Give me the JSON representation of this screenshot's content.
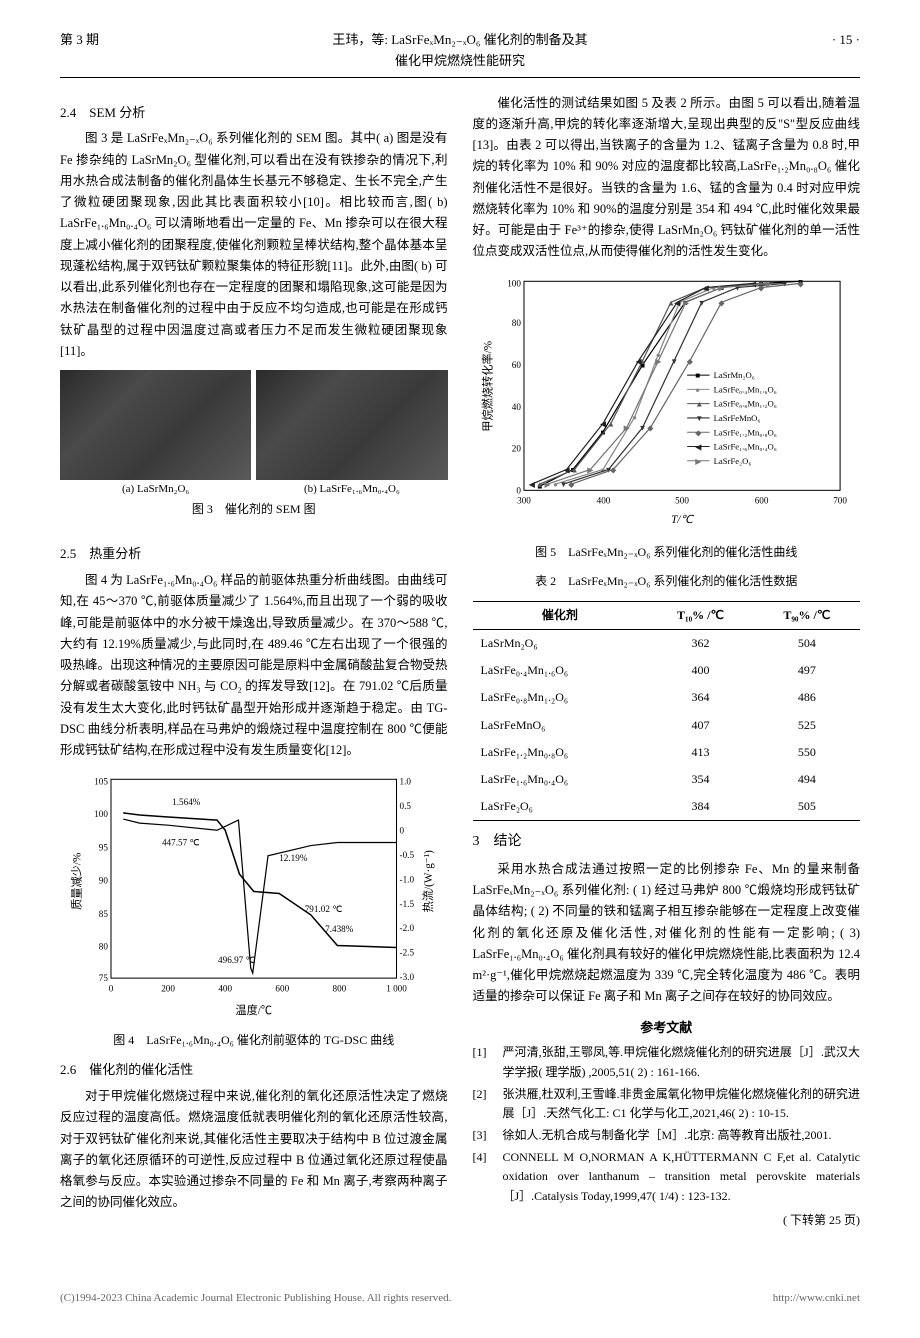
{
  "header": {
    "left": "第 3 期",
    "center": "王玮，等: LaSrFeₓMn₂₋ₓO₆ 催化剂的制备及其催化甲烷燃烧性能研究",
    "right": "· 15 ·"
  },
  "sec24": {
    "title": "2.4　SEM 分析",
    "p1": "图 3 是 LaSrFeₓMn₂₋ₓO₆ 系列催化剂的 SEM 图。其中( a) 图是没有 Fe 掺杂纯的 LaSrMn₂O₆ 型催化剂,可以看出在没有铁掺杂的情况下,利用水热合成法制备的催化剂晶体生长基元不够稳定、生长不完全,产生了微粒硬团聚现象,因此其比表面积较小[10]。相比较而言,图( b) LaSrFe₁.₆Mn₀.₄O₆ 可以清晰地看出一定量的 Fe、Mn 掺杂可以在很大程度上减小催化剂的团聚程度,使催化剂颗粒呈棒状结构,整个晶体基本呈现蓬松结构,属于双钙钛矿颗粒聚集体的特征形貌[11]。此外,由图( b) 可以看出,此系列催化剂也存在一定程度的团聚和塌陷现象,这可能是因为水热法在制备催化剂的过程中由于反应不均匀造成,也可能是在形成钙钛矿晶型的过程中因温度过高或者压力不足而发生微粒硬团聚现象[11]。"
  },
  "fig3": {
    "label_a": "(a) LaSrMn₂O₆",
    "label_b": "(b) LaSrFe₁.₆Mn₀.₄O₆",
    "caption": "图 3　催化剂的 SEM 图"
  },
  "sec25": {
    "title": "2.5　热重分析",
    "p1": "图 4 为 LaSrFe₁.₆Mn₀.₄O₆ 样品的前驱体热重分析曲线图。由曲线可知,在 45～370 ℃,前驱体质量减少了 1.564%,而且出现了一个弱的吸收峰,可能是前驱体中的水分被干燥逸出,导致质量减少。在 370～588 ℃,大约有 12.19%质量减少,与此同时,在 489.46 ℃左右出现了一个很强的吸热峰。出现这种情况的主要原因可能是原料中金属硝酸盐复合物受热分解或者碳酸氢铵中 NH₃ 与 CO₂ 的挥发导致[12]。在 791.02 ℃后质量没有发生太大变化,此时钙钛矿晶型开始形成并逐渐趋于稳定。由 TG-DSC 曲线分析表明,样品在马弗炉的煅烧过程中温度控制在 800 ℃便能形成钙钛矿结构,在形成过程中没有发生质量变化[12]。"
  },
  "fig4": {
    "caption": "图 4　LaSrFe₁.₆Mn₀.₄O₆ 催化剂前驱体的 TG-DSC 曲线",
    "chart": {
      "type": "line-dual-axis",
      "xlabel": "温度/℃",
      "ylabel_left": "质量减少/%",
      "ylabel_right": "热流/(W·g⁻¹)",
      "xlim": [
        0,
        1000
      ],
      "xticks": [
        0,
        200,
        400,
        600,
        800,
        1000
      ],
      "ylim_left": [
        75,
        105
      ],
      "yticks_left": [
        75,
        80,
        85,
        90,
        95,
        100,
        105
      ],
      "ylim_right": [
        -3.0,
        1.0
      ],
      "yticks_right": [
        -3.0,
        -2.5,
        -2.0,
        -1.5,
        -1.0,
        -0.5,
        0,
        0.5,
        1.0
      ],
      "tg_color": "#000000",
      "dsc_color": "#000000",
      "annotations": [
        "1.564%",
        "447.57 ℃",
        "12.19%",
        "791.02 ℃",
        "496.97 ℃",
        "7.438%"
      ],
      "background": "#ffffff",
      "grid": false,
      "tg_data": [
        [
          45,
          100.5
        ],
        [
          100,
          100
        ],
        [
          200,
          99.5
        ],
        [
          370,
          99
        ],
        [
          400,
          97
        ],
        [
          450,
          90
        ],
        [
          500,
          87
        ],
        [
          588,
          86.8
        ],
        [
          700,
          85
        ],
        [
          791,
          80
        ],
        [
          900,
          79.8
        ],
        [
          1000,
          79.7
        ]
      ],
      "dsc_data": [
        [
          45,
          0.3
        ],
        [
          100,
          0.2
        ],
        [
          200,
          0.1
        ],
        [
          370,
          0
        ],
        [
          447,
          0.2
        ],
        [
          489,
          -2.8
        ],
        [
          497,
          -2.9
        ],
        [
          550,
          -0.5
        ],
        [
          700,
          -0.3
        ],
        [
          791,
          -0.2
        ],
        [
          900,
          -0.2
        ],
        [
          1000,
          -0.2
        ]
      ]
    }
  },
  "sec26": {
    "title": "2.6　催化剂的催化活性",
    "p1": "对于甲烷催化燃烧过程中来说,催化剂的氧化还原活性决定了燃烧反应过程的温度高低。燃烧温度低就表明催化剂的氧化还原活性较高,对于双钙钛矿催化剂来说,其催化活性主要取决于结构中 B 位过渡金属离子的氧化还原循环的可逆性,反应过程中 B 位通过氧化还原过程使晶格氧参与反应。本实验通过掺杂不同量的 Fe 和 Mn 离子,考察两种离子之间的协同催化效应。"
  },
  "right": {
    "p1": "催化活性的测试结果如图 5 及表 2 所示。由图 5 可以看出,随着温度的逐渐升高,甲烷的转化率逐渐增大,呈现出典型的反\"S\"型反应曲线[13]。由表 2 可以得出,当铁离子的含量为 1.2、锰离子含量为 0.8 时,甲烷的转化率为 10% 和 90% 对应的温度都比较高,LaSrFe₁.₂Mn₀.₈O₆ 催化剂催化活性不是很好。当铁的含量为 1.6、锰的含量为 0.4 时对应甲烷燃烧转化率为 10% 和 90%的温度分别是 354 和 494 ℃,此时催化效果最好。可能是由于 Fe³⁺的掺杂,使得 LaSrMn₂O₆ 钙钛矿催化剂的单一活性位点变成双活性位点,从而使得催化剂的活性发生变化。"
  },
  "fig5": {
    "caption": "图 5　LaSrFeₓMn₂₋ₓO₆ 系列催化剂的催化活性曲线",
    "chart": {
      "type": "line",
      "xlabel": "T/℃",
      "ylabel": "甲烷燃烧转化率/%",
      "xlim": [
        300,
        700
      ],
      "xticks": [
        300,
        400,
        500,
        600,
        700
      ],
      "ylim": [
        0,
        100
      ],
      "yticks": [
        0,
        20,
        40,
        60,
        80,
        100
      ],
      "background": "#ffffff",
      "grid": false,
      "frame_color": "#000000",
      "series": [
        {
          "name": "LaSrMn₂O₆",
          "color": "#000000",
          "marker": "square",
          "data": [
            [
              320,
              2
            ],
            [
              362,
              10
            ],
            [
              400,
              28
            ],
            [
              450,
              60
            ],
            [
              504,
              90
            ],
            [
              550,
              97
            ],
            [
              600,
              99
            ],
            [
              650,
              100
            ]
          ]
        },
        {
          "name": "LaSrFe₀.₄Mn₁.₆O₆",
          "color": "#888888",
          "marker": "circle",
          "data": [
            [
              340,
              3
            ],
            [
              400,
              10
            ],
            [
              440,
              35
            ],
            [
              470,
              65
            ],
            [
              497,
              90
            ],
            [
              540,
              97
            ],
            [
              600,
              99
            ]
          ]
        },
        {
          "name": "LaSrFe₀.₈Mn₁.₂O₆",
          "color": "#555555",
          "marker": "triangle-up",
          "data": [
            [
              320,
              3
            ],
            [
              364,
              10
            ],
            [
              410,
              32
            ],
            [
              450,
              62
            ],
            [
              486,
              90
            ],
            [
              530,
              97
            ],
            [
              600,
              99
            ]
          ]
        },
        {
          "name": "LaSrFeMnO₆",
          "color": "#333333",
          "marker": "triangle-down",
          "data": [
            [
              350,
              3
            ],
            [
              407,
              10
            ],
            [
              450,
              30
            ],
            [
              490,
              62
            ],
            [
              525,
              90
            ],
            [
              570,
              97
            ],
            [
              630,
              99
            ]
          ]
        },
        {
          "name": "LaSrFe₁.₂Mn₀.₈O₆",
          "color": "#666666",
          "marker": "diamond",
          "data": [
            [
              360,
              3
            ],
            [
              413,
              10
            ],
            [
              460,
              30
            ],
            [
              510,
              62
            ],
            [
              550,
              90
            ],
            [
              600,
              97
            ],
            [
              650,
              99
            ]
          ]
        },
        {
          "name": "LaSrFe₁.₆Mn₀.₄O₆",
          "color": "#222222",
          "marker": "triangle-left",
          "data": [
            [
              310,
              3
            ],
            [
              354,
              10
            ],
            [
              400,
              32
            ],
            [
              445,
              62
            ],
            [
              494,
              90
            ],
            [
              530,
              97
            ],
            [
              590,
              99
            ]
          ]
        },
        {
          "name": "LaSrFe₂O₆",
          "color": "#777777",
          "marker": "triangle-right",
          "data": [
            [
              330,
              3
            ],
            [
              384,
              10
            ],
            [
              430,
              30
            ],
            [
              470,
              62
            ],
            [
              505,
              90
            ],
            [
              550,
              97
            ],
            [
              610,
              99
            ]
          ]
        }
      ]
    }
  },
  "table2": {
    "caption": "表 2　LaSrFeₓMn₂₋ₓO₆ 系列催化剂的催化活性数据",
    "columns": [
      "催化剂",
      "T₁₀% /℃",
      "T₉₀% /℃"
    ],
    "rows": [
      [
        "LaSrMn₂O₆",
        "362",
        "504"
      ],
      [
        "LaSrFe₀.₄Mn₁.₆O₆",
        "400",
        "497"
      ],
      [
        "LaSrFe₀.₈Mn₁.₂O₆",
        "364",
        "486"
      ],
      [
        "LaSrFeMnO₆",
        "407",
        "525"
      ],
      [
        "LaSrFe₁.₂Mn₀.₈O₆",
        "413",
        "550"
      ],
      [
        "LaSrFe₁.₆Mn₀.₄O₆",
        "354",
        "494"
      ],
      [
        "LaSrFe₂O₆",
        "384",
        "505"
      ]
    ]
  },
  "sec3": {
    "title": "3　结论",
    "p1": "采用水热合成法通过按照一定的比例掺杂 Fe、Mn 的量来制备 LaSrFeₓMn₂₋ₓO₆ 系列催化剂: ( 1) 经过马弗炉 800 ℃煅烧均形成钙钛矿晶体结构; ( 2) 不同量的铁和锰离子相互掺杂能够在一定程度上改变催化剂的氧化还原及催化活性,对催化剂的性能有一定影响; ( 3) LaSrFe₁.₆Mn₀.₄O₆ 催化剂具有较好的催化甲烷燃烧性能,比表面积为 12.4 m²·g⁻¹,催化甲烷燃烧起燃温度为 339 ℃,完全转化温度为 486 ℃。表明适量的掺杂可以保证 Fe 离子和 Mn 离子之间存在较好的协同效应。"
  },
  "refs": {
    "title": "参考文献",
    "items": [
      {
        "num": "[1]",
        "text": "严河清,张甜,王鄂凤,等.甲烷催化燃烧催化剂的研究进展［J］.武汉大学学报( 理学版) ,2005,51( 2) : 161-166."
      },
      {
        "num": "[2]",
        "text": "张洪雁,杜双利,王雪峰.非贵金属氧化物甲烷催化燃烧催化剂的研究进展［J］.天然气化工: C1 化学与化工,2021,46( 2) : 10-15."
      },
      {
        "num": "[3]",
        "text": "徐如人.无机合成与制备化学［M］.北京: 高等教育出版社,2001."
      },
      {
        "num": "[4]",
        "text": "CONNELL M O,NORMAN A K,HÜTTERMANN C F,et al. Catalytic oxidation over lanthanum – transition metal perovskite materials［J］.Catalysis Today,1999,47( 1/4) : 123-132."
      }
    ]
  },
  "continue": "( 下转第 25 页)",
  "footer": {
    "left": "(C)1994-2023 China Academic Journal Electronic Publishing House. All rights reserved.",
    "right": "http://www.cnki.net"
  }
}
